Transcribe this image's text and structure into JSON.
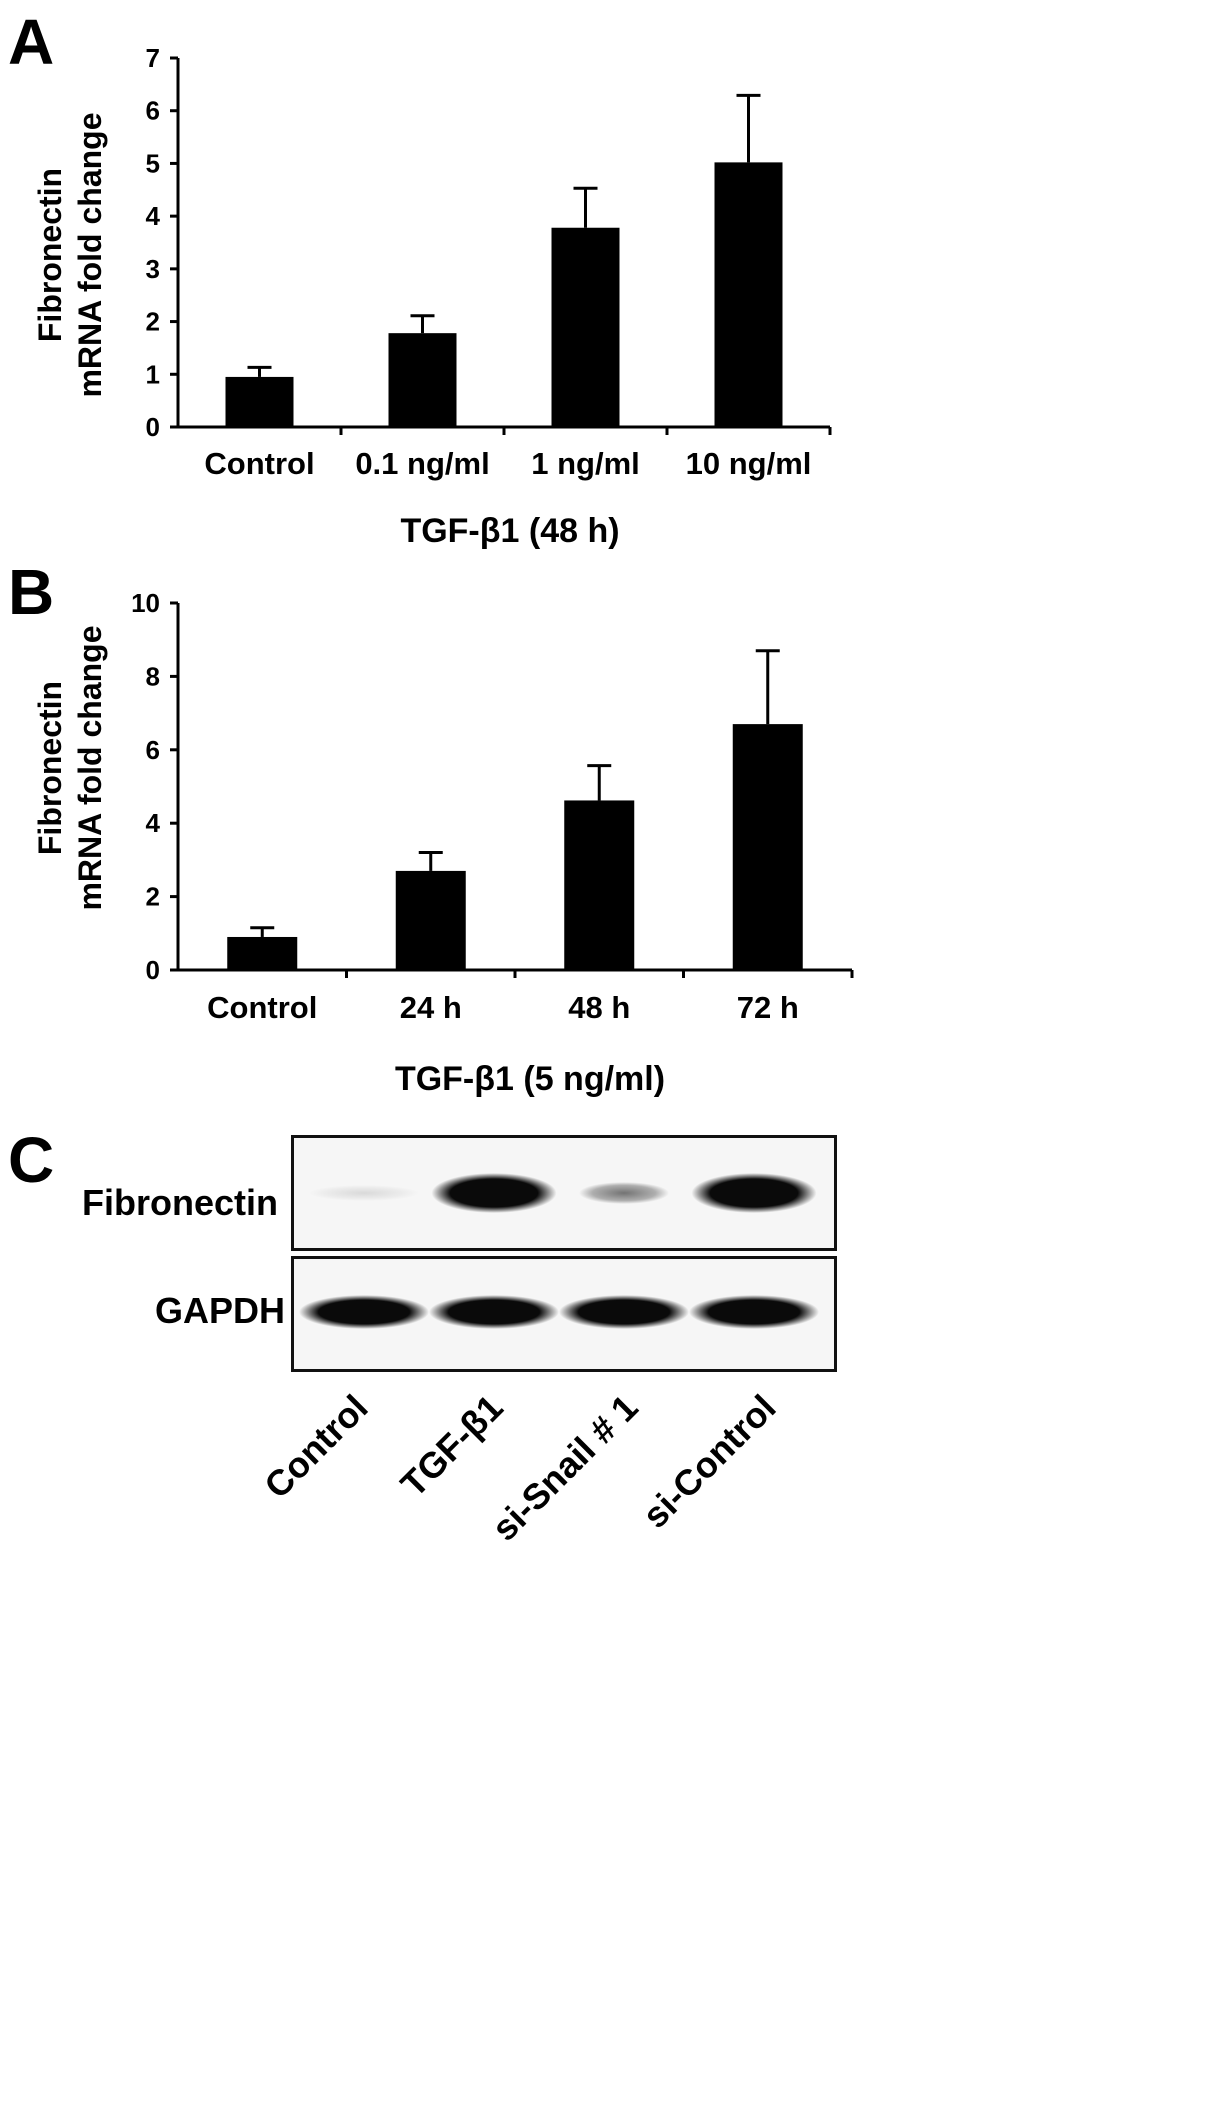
{
  "panels": {
    "A": {
      "letter": "A"
    },
    "B": {
      "letter": "B"
    },
    "C": {
      "letter": "C"
    }
  },
  "chart_data": [
    {
      "type": "bar",
      "panel": "A",
      "categories": [
        "Control",
        "0.1 ng/ml",
        "1 ng/ml",
        "10 ng/ml"
      ],
      "values": [
        0.95,
        1.78,
        3.78,
        5.02
      ],
      "errors": [
        0.18,
        0.33,
        0.75,
        1.27
      ],
      "ylim": [
        0,
        7
      ],
      "yticks": [
        0,
        1,
        2,
        3,
        4,
        5,
        6,
        7
      ],
      "ylabel_line1": "Fibronectin",
      "ylabel_line2": "mRNA fold change",
      "xlabel": "TGF-β1 (48 h)",
      "bar_color": "#000000"
    },
    {
      "type": "bar",
      "panel": "B",
      "categories": [
        "Control",
        "24 h",
        "48 h",
        "72 h"
      ],
      "values": [
        0.9,
        2.7,
        4.62,
        6.7
      ],
      "errors": [
        0.25,
        0.5,
        0.95,
        2.0
      ],
      "ylim": [
        0,
        10
      ],
      "yticks": [
        0,
        2,
        4,
        6,
        8,
        10
      ],
      "ylabel_line1": "Fibronectin",
      "ylabel_line2": "mRNA fold change",
      "xlabel": "TGF-β1 (5 ng/ml)",
      "bar_color": "#000000"
    }
  ],
  "blot": {
    "rows": [
      {
        "label": "Fibronectin",
        "intensities": [
          0.15,
          1.0,
          0.55,
          1.0
        ]
      },
      {
        "label": "GAPDH",
        "intensities": [
          1.0,
          1.0,
          1.0,
          1.0
        ]
      }
    ],
    "lanes": [
      "Control",
      "TGF-β1",
      "si-Snail # 1",
      "si-Control"
    ]
  }
}
